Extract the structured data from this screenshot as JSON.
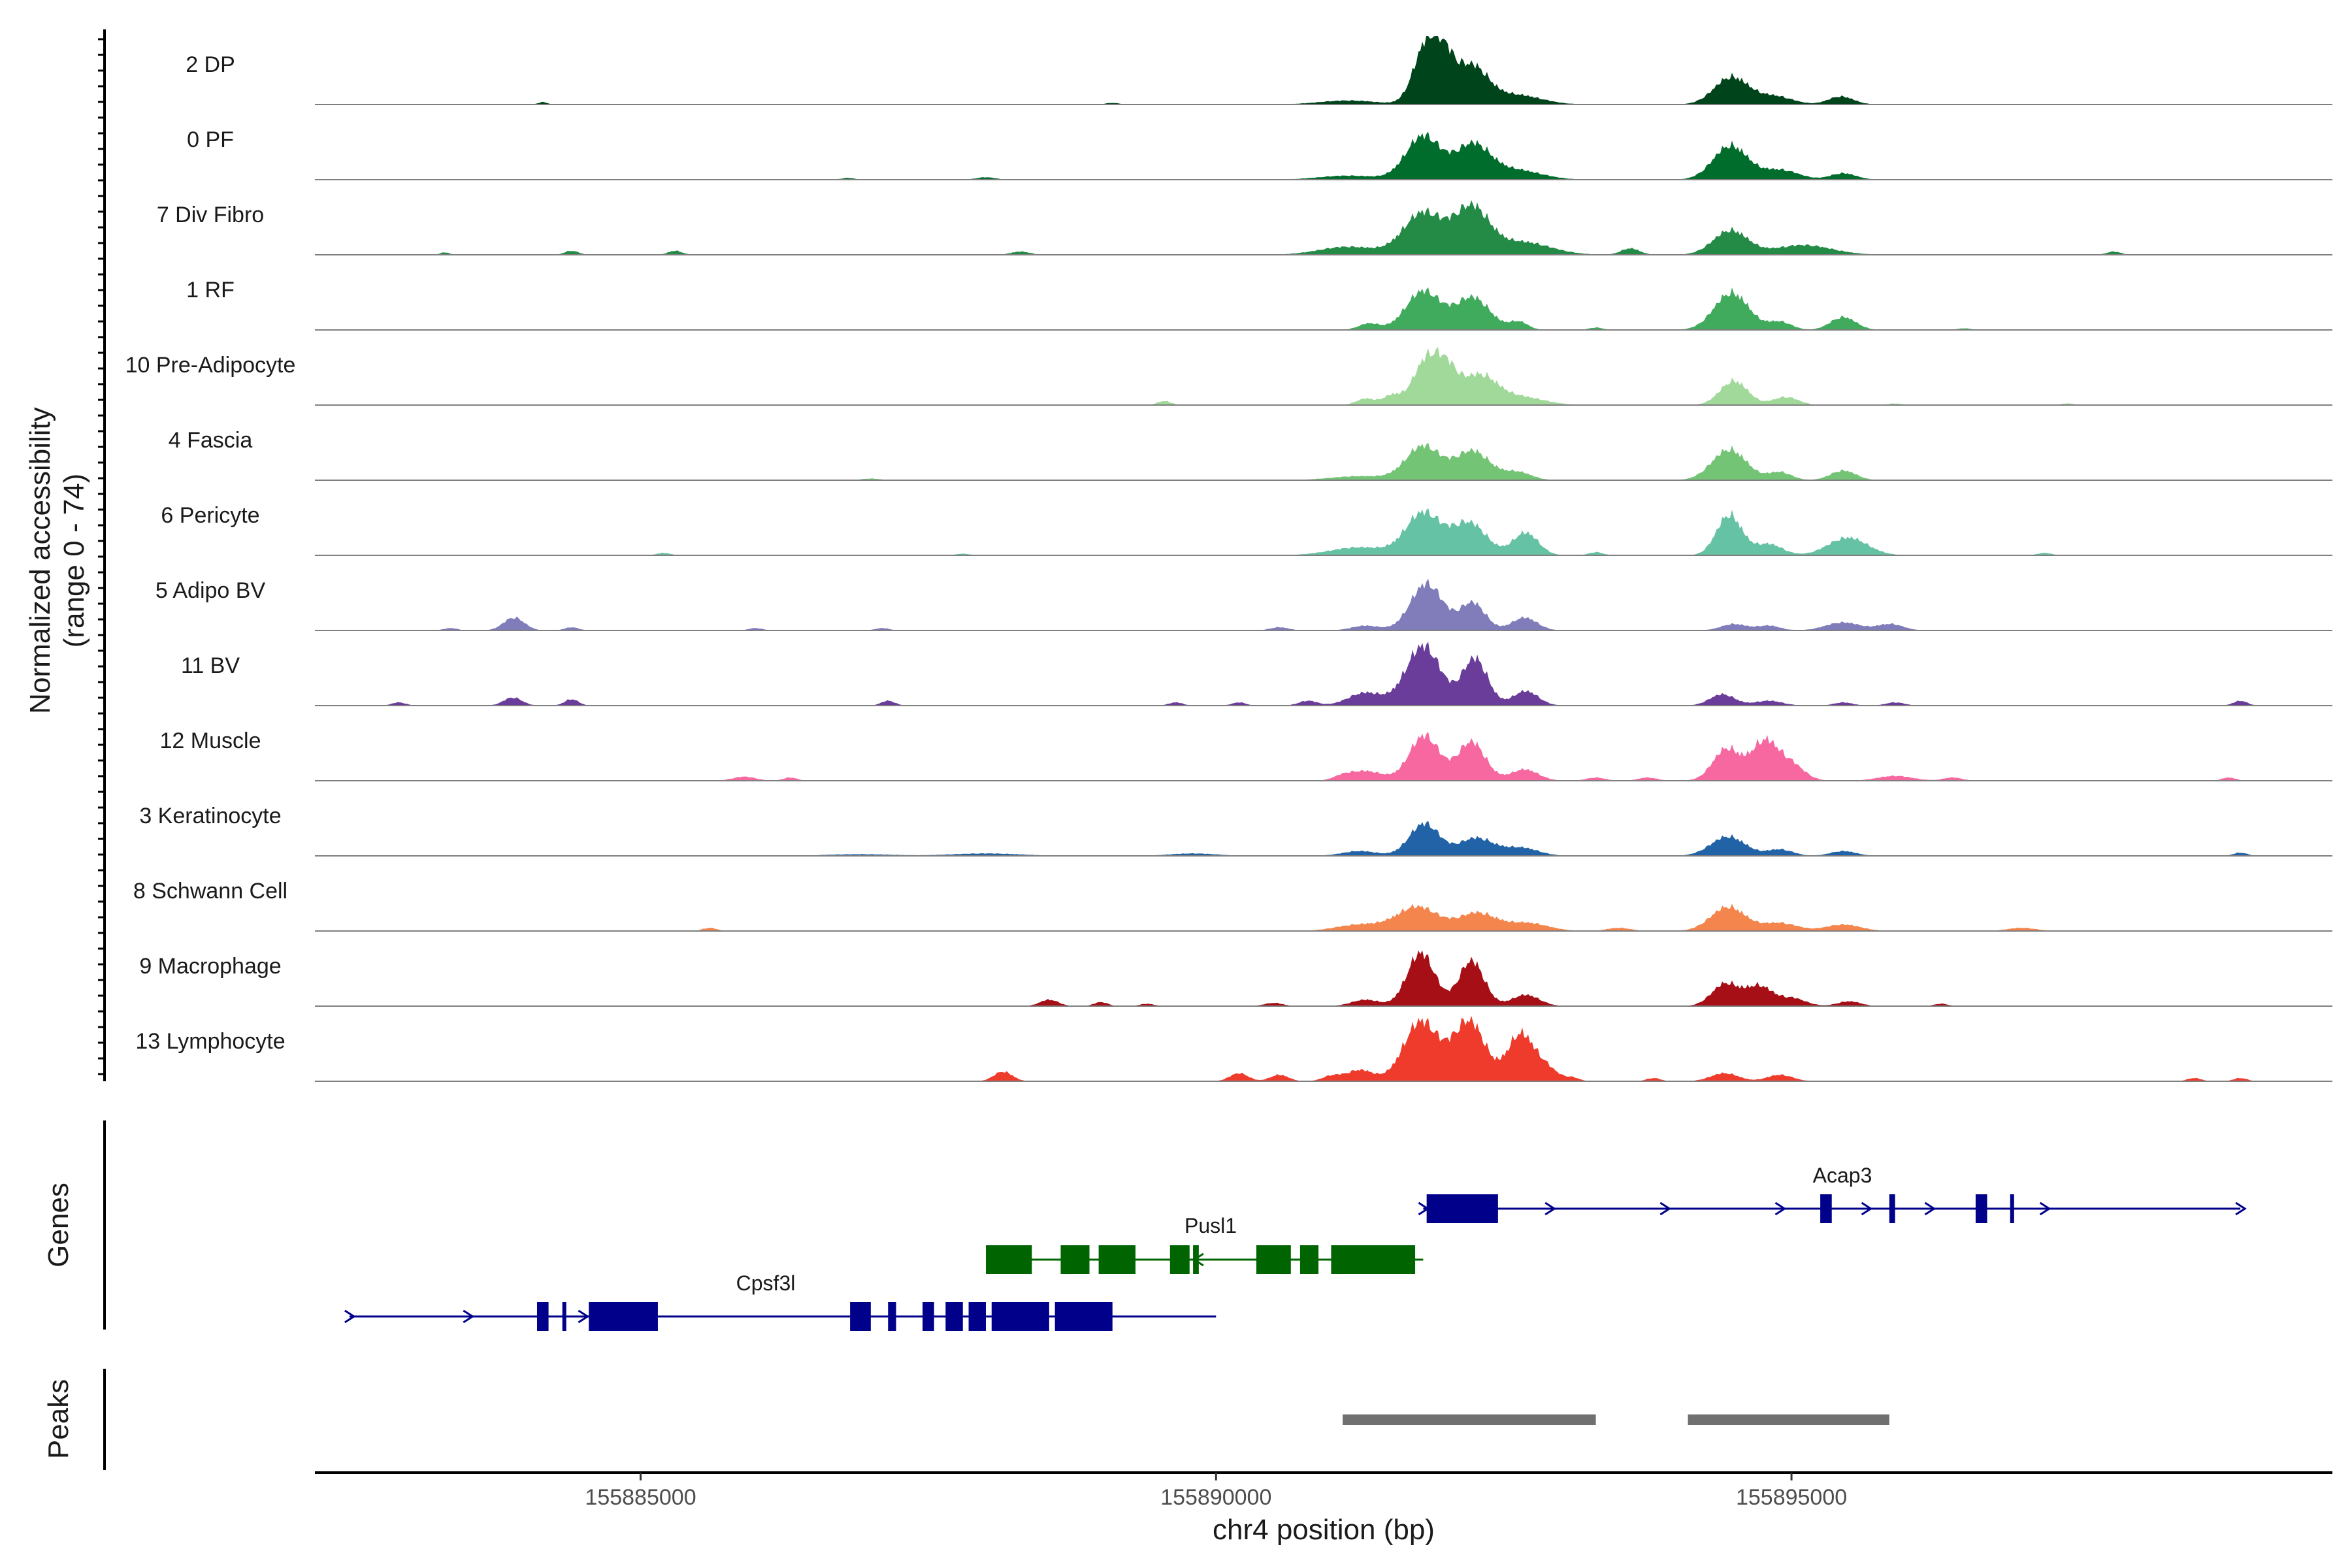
{
  "chart_data": {
    "type": "area",
    "title": "",
    "y_axis_title": "Normalized accessibility",
    "y_axis_subtitle": "(range 0 - 74)",
    "y_range": [
      0,
      74
    ],
    "x_axis_title": "chr4 position (bp)",
    "x_range": [
      155882170,
      155899700
    ],
    "x_ticks": [
      155885000,
      155890000,
      155895000
    ],
    "x_tick_labels": [
      "155885000",
      "155890000",
      "155895000"
    ],
    "tracks": [
      {
        "name": "2 DP",
        "color": "#00441b",
        "peaks": [
          [
            155891830,
            74,
            110
          ],
          [
            155891990,
            40,
            90
          ],
          [
            155892220,
            46,
            140
          ],
          [
            155892600,
            12,
            220
          ],
          [
            155894480,
            34,
            150
          ],
          [
            155894860,
            10,
            150
          ],
          [
            155895430,
            10,
            110
          ],
          [
            155891150,
            5,
            250
          ],
          [
            155884150,
            3,
            40
          ],
          [
            155889100,
            2,
            60
          ]
        ]
      },
      {
        "name": "0 PF",
        "color": "#006d2c",
        "peaks": [
          [
            155891800,
            54,
            150
          ],
          [
            155892230,
            42,
            150
          ],
          [
            155892600,
            12,
            220
          ],
          [
            155894470,
            42,
            150
          ],
          [
            155894900,
            12,
            160
          ],
          [
            155895450,
            8,
            110
          ],
          [
            155891150,
            5,
            250
          ],
          [
            155888000,
            3,
            80
          ],
          [
            155886800,
            2,
            60
          ]
        ]
      },
      {
        "name": "7 Div Fibro",
        "color": "#238b45",
        "peaks": [
          [
            155891800,
            52,
            170
          ],
          [
            155892220,
            56,
            150
          ],
          [
            155892650,
            16,
            250
          ],
          [
            155894470,
            30,
            150
          ],
          [
            155895100,
            12,
            250
          ],
          [
            155891150,
            10,
            250
          ],
          [
            155893600,
            8,
            80
          ],
          [
            155884400,
            5,
            60
          ],
          [
            155885300,
            5,
            60
          ],
          [
            155888300,
            4,
            80
          ],
          [
            155897800,
            4,
            60
          ],
          [
            155883300,
            3,
            40
          ]
        ]
      },
      {
        "name": "1 RF",
        "color": "#41ab5d",
        "peaks": [
          [
            155891800,
            48,
            150
          ],
          [
            155892230,
            40,
            150
          ],
          [
            155892630,
            10,
            80
          ],
          [
            155894480,
            46,
            150
          ],
          [
            155894900,
            10,
            100
          ],
          [
            155895450,
            16,
            110
          ],
          [
            155891330,
            8,
            90
          ],
          [
            155893300,
            3,
            60
          ],
          [
            155896500,
            2,
            60
          ]
        ]
      },
      {
        "name": "10 Pre-Adipocyte",
        "color": "#a1d99b",
        "peaks": [
          [
            155891820,
            52,
            110
          ],
          [
            155892000,
            40,
            100
          ],
          [
            155892290,
            36,
            150
          ],
          [
            155892650,
            10,
            200
          ],
          [
            155894500,
            30,
            120
          ],
          [
            155894950,
            10,
            110
          ],
          [
            155891300,
            8,
            80
          ],
          [
            155891530,
            12,
            80
          ],
          [
            155889550,
            5,
            60
          ],
          [
            155895900,
            2,
            60
          ],
          [
            155897400,
            2,
            60
          ]
        ]
      },
      {
        "name": "4 Fascia",
        "color": "#74c476",
        "peaks": [
          [
            155891800,
            42,
            150
          ],
          [
            155892230,
            36,
            150
          ],
          [
            155892620,
            10,
            120
          ],
          [
            155894460,
            38,
            150
          ],
          [
            155894900,
            10,
            100
          ],
          [
            155895450,
            12,
            110
          ],
          [
            155891250,
            5,
            250
          ],
          [
            155887000,
            2,
            80
          ]
        ]
      },
      {
        "name": "6 Pericyte",
        "color": "#66c2a4",
        "peaks": [
          [
            155891800,
            52,
            150
          ],
          [
            155892200,
            40,
            150
          ],
          [
            155892690,
            28,
            110
          ],
          [
            155894460,
            50,
            110
          ],
          [
            155894800,
            14,
            120
          ],
          [
            155895490,
            22,
            170
          ],
          [
            155891250,
            10,
            250
          ],
          [
            155893300,
            4,
            60
          ],
          [
            155885200,
            3,
            60
          ],
          [
            155887800,
            2,
            60
          ],
          [
            155897200,
            3,
            60
          ]
        ]
      },
      {
        "name": "5 Adipo BV",
        "color": "#807dba",
        "peaks": [
          [
            155891830,
            58,
            140
          ],
          [
            155892230,
            34,
            110
          ],
          [
            155892680,
            16,
            110
          ],
          [
            155883900,
            16,
            90
          ],
          [
            155894500,
            8,
            110
          ],
          [
            155894800,
            6,
            100
          ],
          [
            155895450,
            10,
            150
          ],
          [
            155895860,
            8,
            110
          ],
          [
            155891300,
            6,
            120
          ],
          [
            155883350,
            3,
            60
          ],
          [
            155884400,
            4,
            60
          ],
          [
            155886000,
            3,
            60
          ],
          [
            155887100,
            3,
            60
          ],
          [
            155890550,
            4,
            80
          ]
        ]
      },
      {
        "name": "11 BV",
        "color": "#6a3d9a",
        "peaks": [
          [
            155891800,
            74,
            150
          ],
          [
            155892250,
            58,
            110
          ],
          [
            155892690,
            18,
            110
          ],
          [
            155891300,
            16,
            150
          ],
          [
            155883890,
            10,
            80
          ],
          [
            155884400,
            8,
            60
          ],
          [
            155882900,
            4,
            60
          ],
          [
            155887150,
            6,
            60
          ],
          [
            155889650,
            4,
            60
          ],
          [
            155890200,
            4,
            60
          ],
          [
            155890800,
            6,
            80
          ],
          [
            155894400,
            14,
            110
          ],
          [
            155894800,
            6,
            120
          ],
          [
            155895450,
            4,
            80
          ],
          [
            155895900,
            4,
            80
          ],
          [
            155898900,
            6,
            60
          ]
        ]
      },
      {
        "name": "12 Muscle",
        "color": "#f768a1",
        "peaks": [
          [
            155891810,
            56,
            130
          ],
          [
            155892220,
            48,
            120
          ],
          [
            155892680,
            14,
            120
          ],
          [
            155891300,
            12,
            150
          ],
          [
            155894440,
            40,
            120
          ],
          [
            155894760,
            46,
            110
          ],
          [
            155894980,
            22,
            120
          ],
          [
            155885900,
            5,
            100
          ],
          [
            155886300,
            4,
            60
          ],
          [
            155891100,
            4,
            80
          ],
          [
            155893300,
            4,
            80
          ],
          [
            155893750,
            4,
            80
          ],
          [
            155895900,
            6,
            150
          ],
          [
            155896400,
            4,
            80
          ],
          [
            155898800,
            4,
            60
          ]
        ]
      },
      {
        "name": "3 Keratinocyte",
        "color": "#2163a6",
        "peaks": [
          [
            155891810,
            40,
            130
          ],
          [
            155892260,
            22,
            150
          ],
          [
            155892650,
            10,
            150
          ],
          [
            155891250,
            6,
            150
          ],
          [
            155894450,
            24,
            150
          ],
          [
            155894900,
            8,
            110
          ],
          [
            155895450,
            6,
            110
          ],
          [
            155888000,
            3,
            300
          ],
          [
            155886900,
            2,
            300
          ],
          [
            155889800,
            3,
            200
          ],
          [
            155898900,
            4,
            60
          ]
        ]
      },
      {
        "name": "8 Schwann Cell",
        "color": "#f4864d",
        "peaks": [
          [
            155891750,
            30,
            180
          ],
          [
            155892270,
            22,
            160
          ],
          [
            155892700,
            10,
            180
          ],
          [
            155891250,
            8,
            200
          ],
          [
            155894450,
            30,
            150
          ],
          [
            155894900,
            10,
            150
          ],
          [
            155895450,
            8,
            150
          ],
          [
            155885600,
            4,
            60
          ],
          [
            155893500,
            4,
            100
          ],
          [
            155897000,
            4,
            120
          ]
        ]
      },
      {
        "name": "9 Macrophage",
        "color": "#a50f15",
        "peaks": [
          [
            155891780,
            66,
            120
          ],
          [
            155892220,
            56,
            110
          ],
          [
            155892690,
            14,
            120
          ],
          [
            155891300,
            8,
            120
          ],
          [
            155894430,
            28,
            120
          ],
          [
            155894720,
            24,
            110
          ],
          [
            155895000,
            10,
            120
          ],
          [
            155888550,
            8,
            80
          ],
          [
            155889000,
            5,
            60
          ],
          [
            155889400,
            3,
            60
          ],
          [
            155890500,
            4,
            80
          ],
          [
            155895500,
            6,
            100
          ],
          [
            155896300,
            3,
            60
          ]
        ]
      },
      {
        "name": "13 Lymphocyte",
        "color": "#ef3b2c",
        "peaks": [
          [
            155891780,
            74,
            150
          ],
          [
            155892200,
            74,
            140
          ],
          [
            155892640,
            56,
            110
          ],
          [
            155892850,
            18,
            110
          ],
          [
            155891250,
            14,
            120
          ],
          [
            155888150,
            12,
            80
          ],
          [
            155890200,
            10,
            80
          ],
          [
            155890550,
            8,
            80
          ],
          [
            155891000,
            6,
            80
          ],
          [
            155893100,
            4,
            60
          ],
          [
            155893800,
            4,
            60
          ],
          [
            155894420,
            10,
            120
          ],
          [
            155894900,
            8,
            110
          ],
          [
            155898500,
            4,
            60
          ],
          [
            155898900,
            4,
            60
          ]
        ]
      }
    ],
    "genes": [
      {
        "name": "Cpsf3l",
        "strand": "+",
        "color": "#00008b",
        "row": 2,
        "start": 155882470,
        "end": 155890000,
        "exons": [
          [
            155884100,
            155884200
          ],
          [
            155884320,
            155884350
          ],
          [
            155884550,
            155885150
          ],
          [
            155886820,
            155887000
          ],
          [
            155887150,
            155887220
          ],
          [
            155887450,
            155887550
          ],
          [
            155887650,
            155887800
          ],
          [
            155887850,
            155888000
          ],
          [
            155888050,
            155888550
          ],
          [
            155888600,
            155889100
          ]
        ],
        "arrows": [
          155882470,
          155883500,
          155884500
        ]
      },
      {
        "name": "Pusl1",
        "strand": "-",
        "color": "#006400",
        "row": 1,
        "start": 155888000,
        "end": 155891800,
        "exons": [
          [
            155888000,
            155888400
          ],
          [
            155888650,
            155888900
          ],
          [
            155888980,
            155889300
          ],
          [
            155889600,
            155889770
          ],
          [
            155889800,
            155889850
          ],
          [
            155890350,
            155890650
          ],
          [
            155890730,
            155890890
          ],
          [
            155891000,
            155891730
          ]
        ],
        "arrows": [
          155889850
        ]
      },
      {
        "name": "Acap3",
        "strand": "+",
        "color": "#00008b",
        "row": 0,
        "start": 155891800,
        "end": 155898900,
        "exons": [
          [
            155891830,
            155892450
          ],
          [
            155895250,
            155895350
          ],
          [
            155895850,
            155895900
          ],
          [
            155896600,
            155896700
          ],
          [
            155896900,
            155896910
          ]
        ],
        "arrows": [
          155891800,
          155892900,
          155893900,
          155894900,
          155895650,
          155896200,
          155897200,
          155898900
        ]
      }
    ],
    "peaks_track": [
      [
        155891100,
        155893300
      ],
      [
        155894100,
        155895850
      ]
    ],
    "peaks_color": "#707070"
  }
}
